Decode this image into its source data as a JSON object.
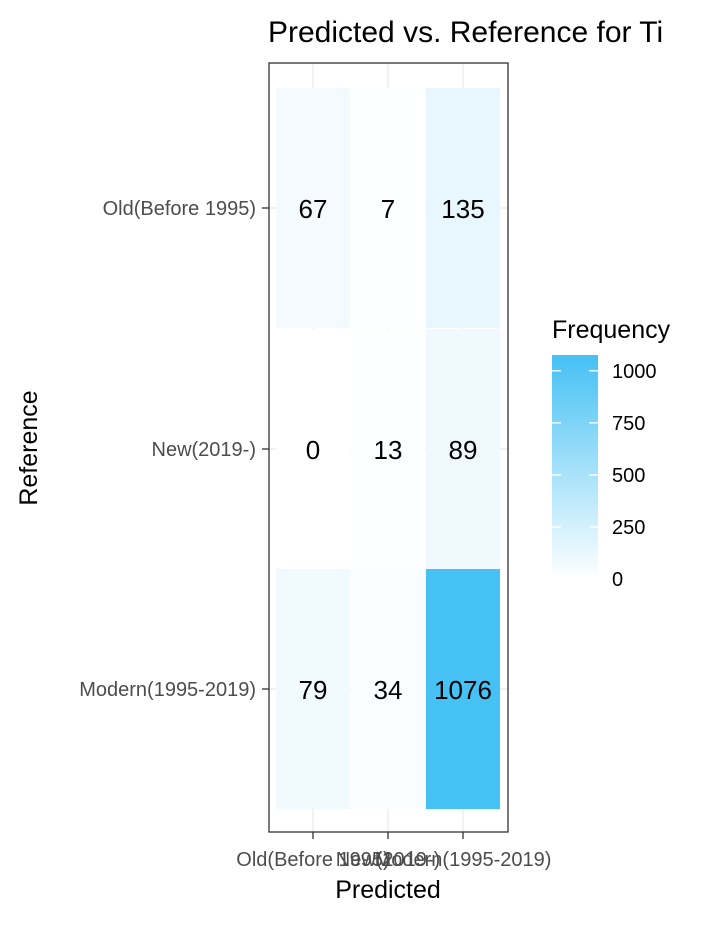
{
  "chart_data": {
    "type": "heatmap",
    "title": "Predicted vs. Reference for Ti",
    "xlabel": "Predicted",
    "ylabel": "Reference",
    "x_categories": [
      "Old(Before 1995)",
      "New(2019-)",
      "Modern(1995-2019)"
    ],
    "y_categories": [
      "Old(Before 1995)",
      "New(2019-)",
      "Modern(1995-2019)"
    ],
    "cells": [
      {
        "x": "Old(Before 1995)",
        "y": "Old(Before 1995)",
        "value": 67
      },
      {
        "x": "New(2019-)",
        "y": "Old(Before 1995)",
        "value": 7
      },
      {
        "x": "Modern(1995-2019)",
        "y": "Old(Before 1995)",
        "value": 135
      },
      {
        "x": "Old(Before 1995)",
        "y": "New(2019-)",
        "value": 0
      },
      {
        "x": "New(2019-)",
        "y": "New(2019-)",
        "value": 13
      },
      {
        "x": "Modern(1995-2019)",
        "y": "New(2019-)",
        "value": 89
      },
      {
        "x": "Old(Before 1995)",
        "y": "Modern(1995-2019)",
        "value": 79
      },
      {
        "x": "New(2019-)",
        "y": "Modern(1995-2019)",
        "value": 34
      },
      {
        "x": "Modern(1995-2019)",
        "y": "Modern(1995-2019)",
        "value": 1076
      }
    ],
    "legend": {
      "title": "Frequency",
      "ticks": [
        0,
        250,
        500,
        750,
        1000
      ],
      "tick_labels": [
        "0",
        "250",
        "500",
        "750",
        "1000"
      ],
      "range": [
        0,
        1076
      ],
      "low_color": "#ffffff",
      "high_color": "#45c1f4",
      "placement": "right"
    },
    "grid": true
  }
}
